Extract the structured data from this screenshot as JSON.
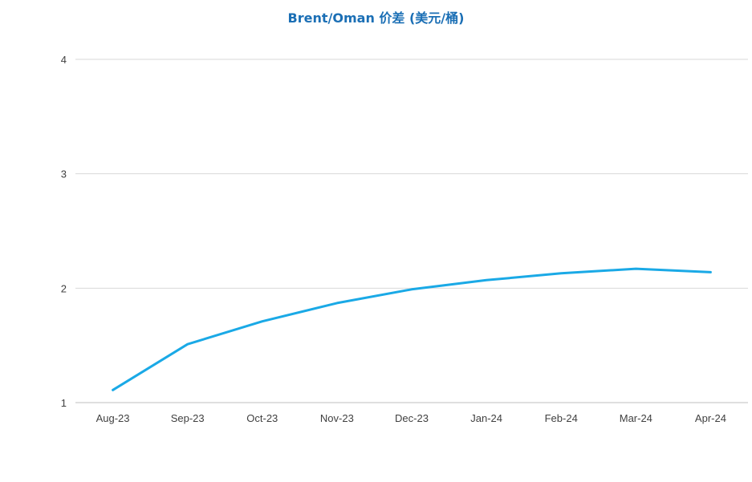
{
  "chart_data": {
    "type": "line",
    "title": "Brent/Oman 价差 (美元/桶)",
    "categories": [
      "Aug-23",
      "Sep-23",
      "Oct-23",
      "Nov-23",
      "Dec-23",
      "Jan-24",
      "Feb-24",
      "Mar-24",
      "Apr-24"
    ],
    "series": [
      {
        "values": [
          1.11,
          1.51,
          1.71,
          1.87,
          1.99,
          2.07,
          2.13,
          2.17,
          2.14
        ]
      }
    ],
    "yticks": [
      "1",
      "2",
      "3",
      "4"
    ],
    "ylim": [
      1,
      4
    ],
    "grid": true,
    "colors": {
      "line": "#1aa9e6",
      "grid": "#d9d9d9",
      "axis": "#bfbfbf",
      "title": "#1b6fb5"
    }
  }
}
